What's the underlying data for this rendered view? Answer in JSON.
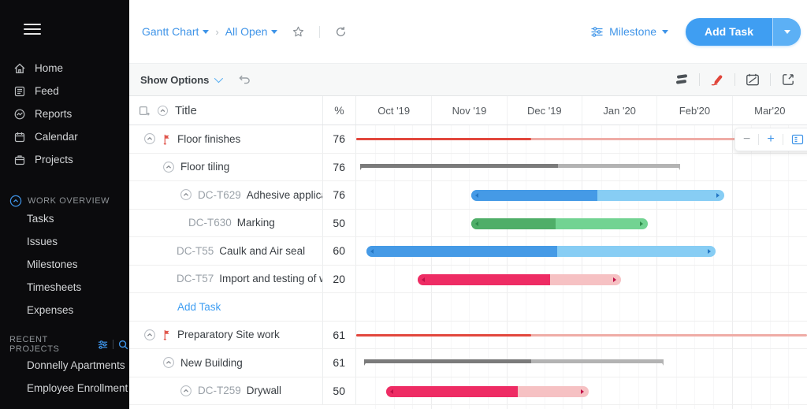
{
  "sidebar": {
    "nav": [
      {
        "icon": "home",
        "label": "Home"
      },
      {
        "icon": "feed",
        "label": "Feed"
      },
      {
        "icon": "reports",
        "label": "Reports"
      },
      {
        "icon": "calendar",
        "label": "Calendar"
      },
      {
        "icon": "projects",
        "label": "Projects"
      }
    ],
    "work_overview": {
      "label": "WORK OVERVIEW",
      "items": [
        "Tasks",
        "Issues",
        "Milestones",
        "Timesheets",
        "Expenses"
      ]
    },
    "recent_projects": {
      "label": "RECENT PROJECTS",
      "items": [
        "Donnelly Apartments",
        "Employee Enrollment"
      ]
    }
  },
  "topbar": {
    "gantt_chart": "Gantt Chart",
    "all_open": "All Open",
    "milestone_label": "Milestone",
    "add_task_label": "Add Task"
  },
  "toolbar": {
    "show_options_label": "Show Options"
  },
  "grid": {
    "columns": {
      "title": "Title",
      "percent": "%"
    },
    "months": [
      "Oct '19",
      "Nov '19",
      "Dec '19",
      "Jan '20",
      "Feb'20",
      "Mar'20"
    ],
    "rows": [
      {
        "type": "task",
        "indent": 18,
        "chevron": true,
        "flag": true,
        "code": "",
        "label": "Floor finishes",
        "percent": "76",
        "bar": {
          "kind": "line",
          "color": "red",
          "start": 0,
          "end": 6,
          "split": 2.33
        }
      },
      {
        "type": "task",
        "indent": 42,
        "chevron": true,
        "flag": false,
        "code": "",
        "label": "Floor tiling",
        "percent": "76",
        "bar": {
          "kind": "summary",
          "color": "gray",
          "start": 0.05,
          "end": 4.31,
          "split": 2.69
        }
      },
      {
        "type": "task",
        "indent": 64,
        "chevron": true,
        "flag": false,
        "code": "DC-T629",
        "label": "Adhesive application",
        "percent": "76",
        "bar": {
          "kind": "task",
          "color": "blue",
          "start": 1.53,
          "end": 4.9,
          "split": 3.21
        }
      },
      {
        "type": "task",
        "indent": 75,
        "chevron": false,
        "flag": false,
        "code": "DC-T630",
        "label": "Marking",
        "percent": "50",
        "bar": {
          "kind": "task",
          "color": "green",
          "start": 1.53,
          "end": 3.88,
          "split": 2.65
        }
      },
      {
        "type": "task",
        "indent": 60,
        "chevron": false,
        "flag": false,
        "code": "DC-T55",
        "label": "Caulk and Air seal",
        "percent": "60",
        "bar": {
          "kind": "task",
          "color": "blue",
          "start": 0.14,
          "end": 4.78,
          "split": 2.67
        }
      },
      {
        "type": "task",
        "indent": 60,
        "chevron": false,
        "flag": false,
        "code": "DC-T57",
        "label": "Import and testing of woo..",
        "percent": "20",
        "bar": {
          "kind": "task",
          "color": "crimson",
          "start": 0.82,
          "end": 3.52,
          "split": 2.58
        }
      },
      {
        "type": "add",
        "indent": 61,
        "label": "Add Task"
      },
      {
        "type": "task",
        "indent": 18,
        "chevron": true,
        "flag": true,
        "code": "",
        "label": "Preparatory Site work",
        "percent": "61",
        "bar": {
          "kind": "line",
          "color": "red",
          "start": 0,
          "end": 6,
          "split": 2.33
        }
      },
      {
        "type": "task",
        "indent": 42,
        "chevron": true,
        "flag": false,
        "code": "",
        "label": "New Building",
        "percent": "61",
        "bar": {
          "kind": "summary",
          "color": "gray",
          "start": 0.1,
          "end": 4.09,
          "split": 2.33
        }
      },
      {
        "type": "task",
        "indent": 64,
        "chevron": true,
        "flag": false,
        "code": "DC-T259",
        "label": "Drywall",
        "percent": "50",
        "bar": {
          "kind": "task",
          "color": "crimson",
          "start": 0.4,
          "end": 3.09,
          "split": 2.15
        }
      }
    ]
  },
  "zoom_controls": {
    "zoom_out": "−",
    "zoom_in": "+"
  },
  "colors": {
    "accent_blue": "#3f9ef2",
    "bars": {
      "blue": {
        "dark": "#459ae6",
        "light": "#87cdf4",
        "arrow": "#2376c4"
      },
      "green": {
        "dark": "#4fae68",
        "light": "#72d392",
        "arrow": "#2e8c4b"
      },
      "crimson": {
        "dark": "#ee2c64",
        "light": "#f6c1c3",
        "arrow": "#c01048"
      },
      "red": {
        "dark": "#e2473d",
        "light": "#efaca6",
        "arrow": "#e2473d"
      },
      "gray": {
        "dark": "#7b7b7b",
        "light": "#b3b3b3",
        "arrow": "#7b7b7b"
      }
    }
  }
}
